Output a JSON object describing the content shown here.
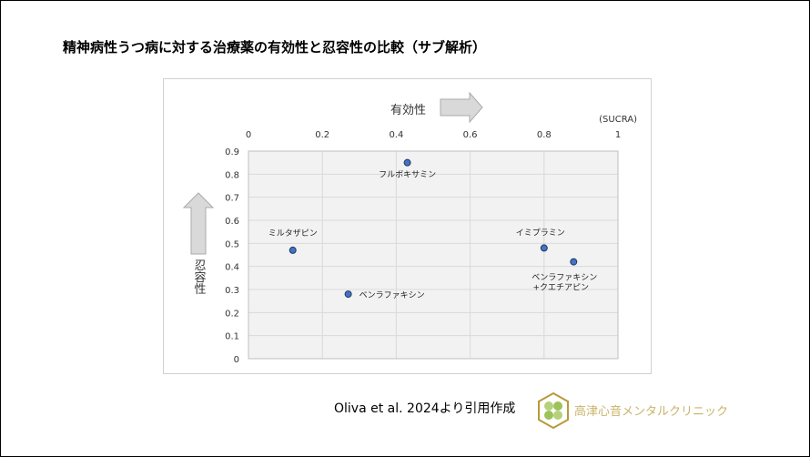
{
  "title": "精神病性うつ病に対する治療薬の有効性と忍容性の比較（サブ解析）",
  "citation": "Oliva et al. 2024より引用作成",
  "clinic_name": "高津心音メンタルクリニック",
  "chart_data": {
    "type": "scatter",
    "xlabel": "有効性",
    "ylabel": "忍容性",
    "unit_label": "(SUCRA)",
    "xlim": [
      0,
      1
    ],
    "ylim": [
      0,
      0.9
    ],
    "x_ticks": [
      "0",
      "0.2",
      "0.4",
      "0.6",
      "0.8",
      "1"
    ],
    "y_ticks": [
      "0",
      "0.1",
      "0.2",
      "0.3",
      "0.4",
      "0.5",
      "0.6",
      "0.7",
      "0.8",
      "0.9"
    ],
    "x_axis_position": "top",
    "grid": true,
    "points": [
      {
        "label": "ミルタザピン",
        "x": 0.12,
        "y": 0.47
      },
      {
        "label": "ベンラファキシン",
        "x": 0.27,
        "y": 0.28
      },
      {
        "label": "フルボキサミン",
        "x": 0.43,
        "y": 0.85
      },
      {
        "label": "イミプラミン",
        "x": 0.8,
        "y": 0.48
      },
      {
        "label": "ベンラファキシン\n+クエチアピン",
        "x": 0.88,
        "y": 0.42
      }
    ],
    "colors": {
      "marker": "#4472c4",
      "marker_edge": "#1f3864",
      "plot_bg": "#f2f2f2",
      "grid": "#d9d9d9",
      "arrow": "#d9d9d9"
    }
  }
}
